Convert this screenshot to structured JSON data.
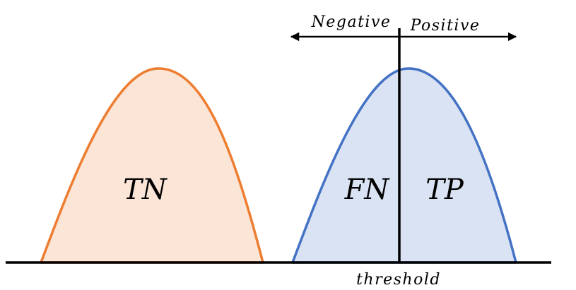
{
  "diagram": {
    "labels": {
      "tn": "TN",
      "fn": "FN",
      "tp": "TP",
      "negative": "Negative",
      "positive": "Positive",
      "threshold": "threshold"
    },
    "colors": {
      "negative_curve_stroke": "#ED7D31",
      "negative_curve_fill": "#FBE5D6",
      "positive_curve_stroke": "#4472C4",
      "positive_curve_fill": "#DAE3F3",
      "lines": "#000000"
    }
  }
}
